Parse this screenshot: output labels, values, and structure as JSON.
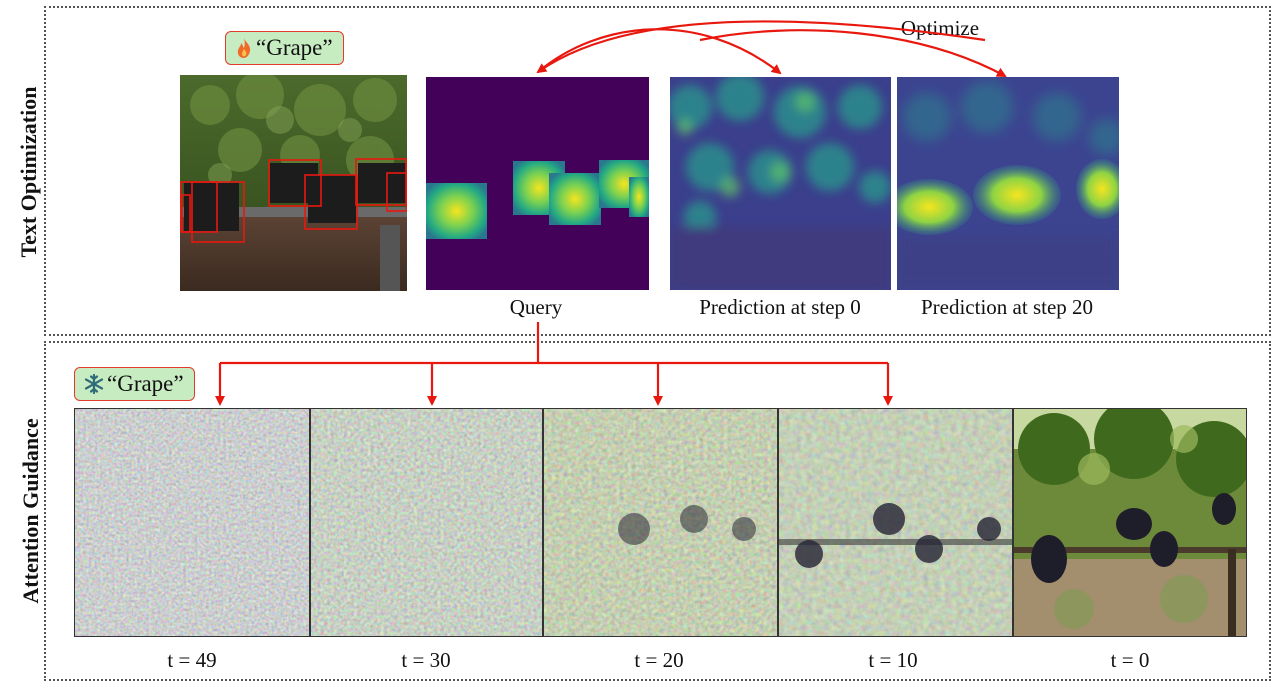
{
  "sections": {
    "top_label": "Text Optimization",
    "bottom_label": "Attention Guidance"
  },
  "top": {
    "tag_text": "“Grape”",
    "tag_icon": "flame-icon",
    "optimize_label": "Optimize",
    "captions": {
      "query": "Query",
      "step0": "Prediction at step 0",
      "step20": "Prediction at step 20"
    }
  },
  "bottom": {
    "tag_text": "“Grape”",
    "tag_icon": "snowflake-icon",
    "timesteps": [
      "t = 49",
      "t = 30",
      "t = 20",
      "t = 10",
      "t = 0"
    ]
  },
  "colors": {
    "arrow": "#e8180f",
    "tag_fill": "#c8ecc2",
    "tag_border": "#e23a2a",
    "heatmap_low": "#44015a",
    "heatmap_high": "#f5e51f"
  }
}
